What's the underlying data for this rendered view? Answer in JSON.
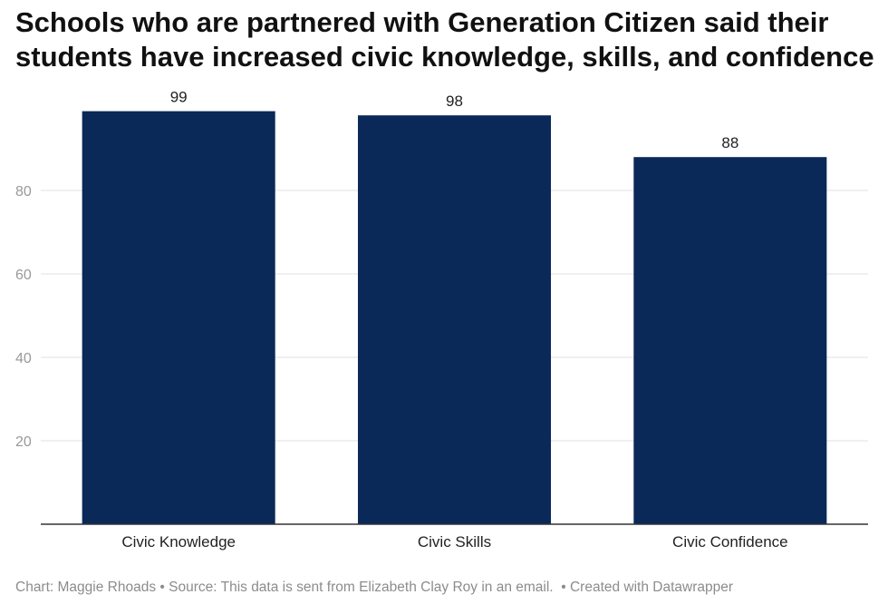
{
  "title": "Schools who are partnered with Generation Citizen said their students have increased civic knowledge, skills, and confidence",
  "footer": {
    "chart_by": "Chart: Maggie Rhoads",
    "source": "Source: This data is sent from Elizabeth Clay Roy in an email.",
    "created_with": "Created with Datawrapper",
    "separator": "•"
  },
  "colors": {
    "bar": "#0a2858",
    "grid": "#e0e0e0",
    "axis": "#333333",
    "tick_label": "#999999",
    "footer": "#8c8c8c"
  },
  "chart_data": {
    "type": "bar",
    "title": "Schools who are partnered with Generation Citizen said their students have increased civic knowledge, skills, and confidence",
    "categories": [
      "Civic Knowledge",
      "Civic Skills",
      "Civic Confidence"
    ],
    "values": [
      99,
      98,
      88
    ],
    "data_labels": [
      "99",
      "98",
      "88"
    ],
    "yticks": [
      20,
      40,
      60,
      80
    ],
    "ylim": [
      0,
      100
    ],
    "xlabel": "",
    "ylabel": "",
    "grid": true,
    "legend": "none"
  }
}
